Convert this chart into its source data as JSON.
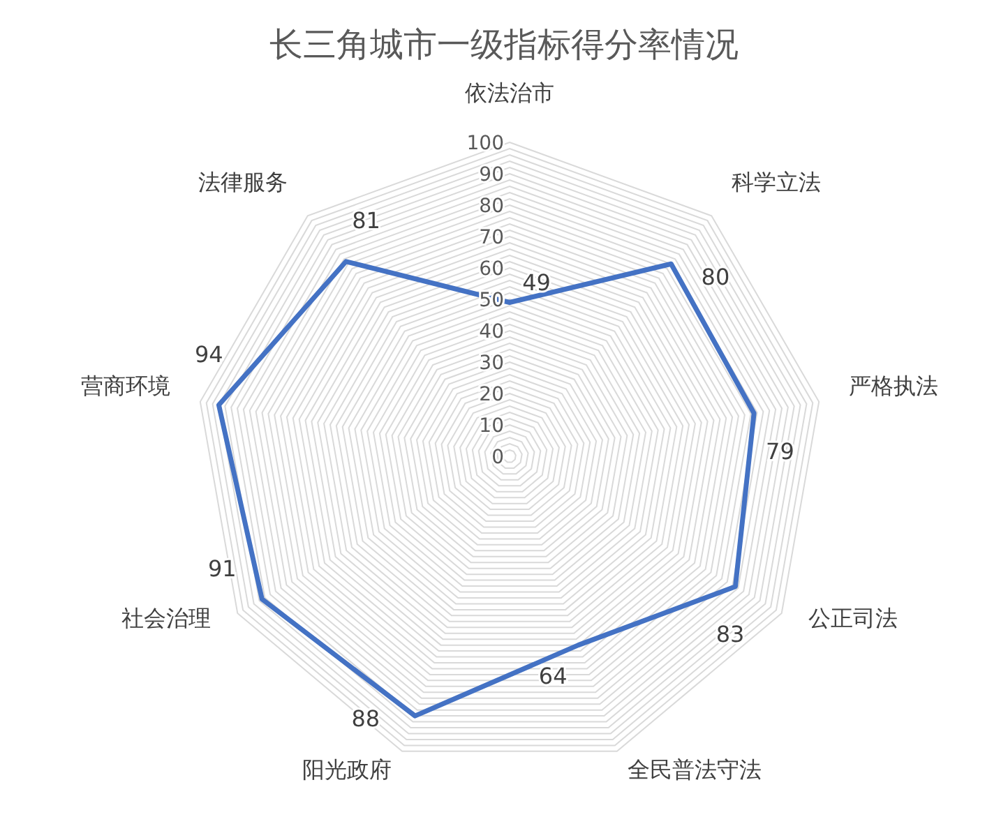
{
  "chart_data": {
    "type": "radar",
    "title": "长三角城市一级指标得分率情况",
    "categories": [
      "依法治市",
      "科学立法",
      "严格执法",
      "公正司法",
      "全民普法守法",
      "阳光政府",
      "社会治理",
      "营商环境",
      "法律服务"
    ],
    "series": [
      {
        "color": "#4472c4",
        "values": [
          49,
          80,
          79,
          83,
          64,
          88,
          91,
          94,
          81
        ]
      }
    ],
    "ylim": [
      0,
      100
    ],
    "yticks": [
      0,
      10,
      20,
      30,
      40,
      50,
      60,
      70,
      80,
      90,
      100
    ],
    "grid": true,
    "data_labels": true
  }
}
